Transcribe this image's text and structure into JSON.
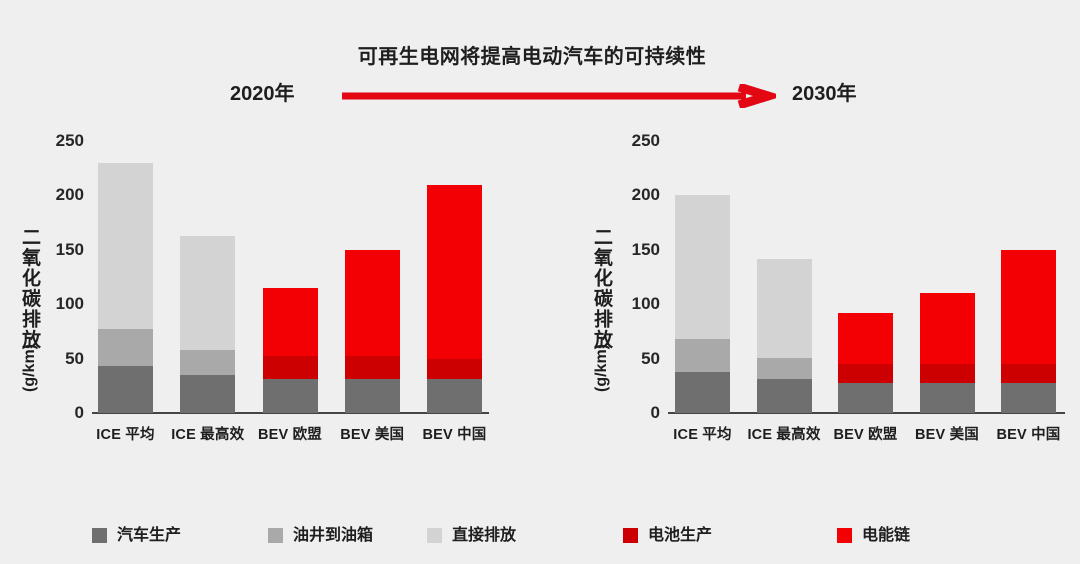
{
  "title": "可再生电网将提高电动汽车的可持续性",
  "header": {
    "left_year": "2020年",
    "right_year": "2030年",
    "arrow_color": "#e30613"
  },
  "y_axis": {
    "label": "二氧化碳排放",
    "unit": "(g/km)",
    "ticks": [
      0,
      50,
      100,
      150,
      200,
      250
    ],
    "max": 250
  },
  "legend": [
    {
      "label": "汽车生产",
      "color": "#6f6f6f"
    },
    {
      "label": "油井到油箱",
      "color": "#a9a9a9"
    },
    {
      "label": "直接排放",
      "color": "#d4d3d3"
    },
    {
      "label": "电池生产",
      "color": "#cc0000"
    },
    {
      "label": "电能链",
      "color": "#f30004"
    }
  ],
  "chart_data": [
    {
      "type": "bar",
      "stacked": true,
      "name": "2020年",
      "ylabel": "二氧化碳排放 (g/km)",
      "ylim": [
        0,
        250
      ],
      "grid": false,
      "categories": [
        "ICE 平均",
        "ICE 最高效",
        "BEV 欧盟",
        "BEV 美国",
        "BEV 中国"
      ],
      "totals": [
        230,
        163,
        115,
        150,
        210
      ],
      "series": [
        {
          "name": "汽车生产",
          "color": "#6f6f6f",
          "values": [
            43,
            35,
            31,
            31,
            31
          ]
        },
        {
          "name": "油井到油箱",
          "color": "#a9a9a9",
          "values": [
            34,
            23,
            0,
            0,
            0
          ]
        },
        {
          "name": "直接排放",
          "color": "#d4d3d3",
          "values": [
            153,
            105,
            0,
            0,
            0
          ]
        },
        {
          "name": "电池生产",
          "color": "#cc0000",
          "values": [
            0,
            0,
            21,
            21,
            19
          ]
        },
        {
          "name": "电能链",
          "color": "#f30004",
          "values": [
            0,
            0,
            63,
            98,
            160
          ]
        }
      ]
    },
    {
      "type": "bar",
      "stacked": true,
      "name": "2030年",
      "ylabel": "二氧化碳排放 (g/km)",
      "ylim": [
        0,
        250
      ],
      "grid": false,
      "categories": [
        "ICE 平均",
        "ICE 最高效",
        "BEV 欧盟",
        "BEV 美国",
        "BEV 中国"
      ],
      "totals": [
        200,
        142,
        92,
        110,
        150
      ],
      "series": [
        {
          "name": "汽车生产",
          "color": "#6f6f6f",
          "values": [
            38,
            31,
            28,
            28,
            28
          ]
        },
        {
          "name": "油井到油箱",
          "color": "#a9a9a9",
          "values": [
            30,
            20,
            0,
            0,
            0
          ]
        },
        {
          "name": "直接排放",
          "color": "#d4d3d3",
          "values": [
            132,
            91,
            0,
            0,
            0
          ]
        },
        {
          "name": "电池生产",
          "color": "#cc0000",
          "values": [
            0,
            0,
            17,
            17,
            17
          ]
        },
        {
          "name": "电能链",
          "color": "#f30004",
          "values": [
            0,
            0,
            47,
            65,
            105
          ]
        }
      ]
    }
  ]
}
